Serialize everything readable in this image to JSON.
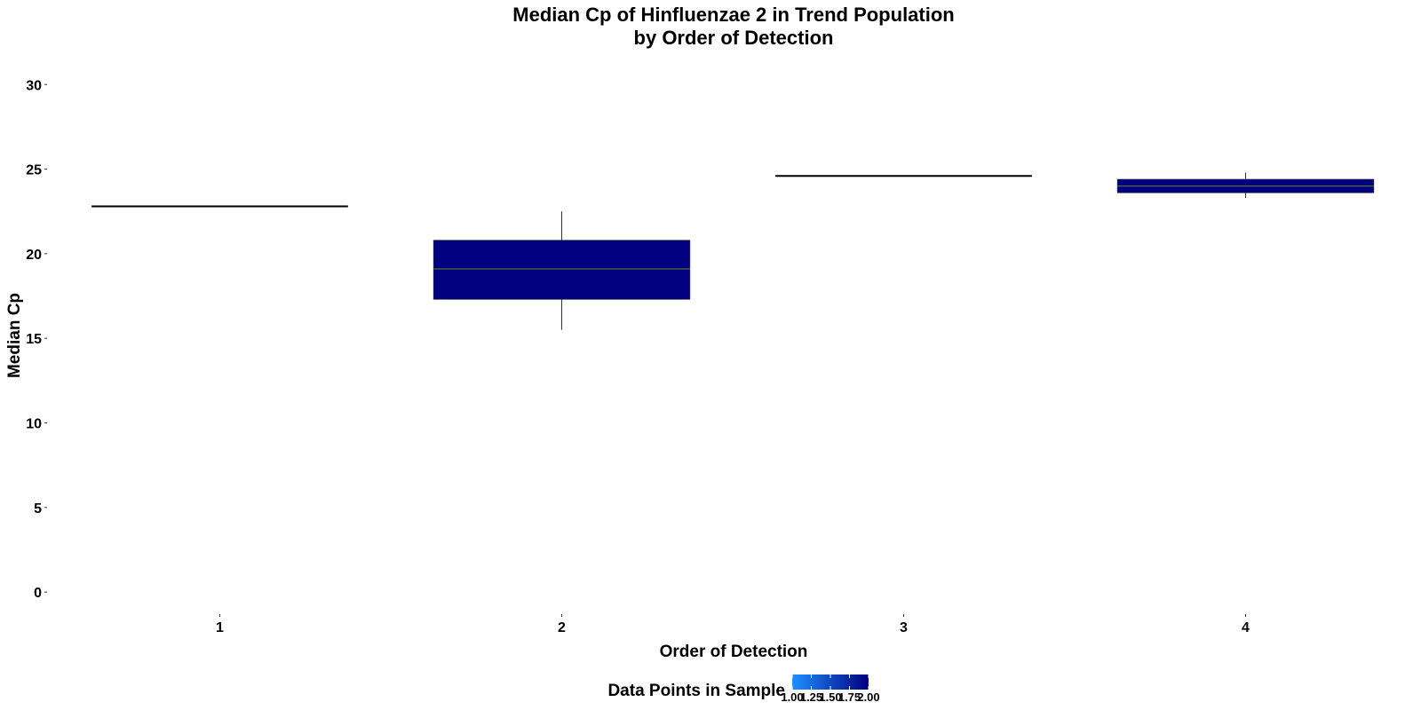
{
  "chart_data": {
    "type": "box",
    "title_lines": [
      "Median Cp of Hinfluenzae 2 in Trend Population",
      "by Order of Detection"
    ],
    "xlabel": "Order of Detection",
    "ylabel": "Median Cp",
    "categories": [
      "1",
      "2",
      "3",
      "4"
    ],
    "ylim": [
      -1.2,
      30.8
    ],
    "yticks": [
      0,
      5,
      10,
      15,
      20,
      25,
      30
    ],
    "boxes": [
      {
        "category": "1",
        "min": 22.8,
        "q1": 22.8,
        "median": 22.8,
        "q3": 22.8,
        "max": 22.8,
        "data_points": 1
      },
      {
        "category": "2",
        "min": 15.5,
        "q1": 17.3,
        "median": 19.1,
        "q3": 20.8,
        "max": 22.5,
        "data_points": 2
      },
      {
        "category": "3",
        "min": 24.6,
        "q1": 24.6,
        "median": 24.6,
        "q3": 24.6,
        "max": 24.6,
        "data_points": 1
      },
      {
        "category": "4",
        "min": 23.3,
        "q1": 23.6,
        "median": 24.0,
        "q3": 24.4,
        "max": 24.8,
        "data_points": 2
      }
    ],
    "grid": false,
    "legend": {
      "title": "Data Points in Sample",
      "placement": "bottom",
      "ticks": [
        "1.00",
        "1.25",
        "1.50",
        "1.75",
        "2.00"
      ],
      "range": [
        1,
        2
      ],
      "low_color": "#1E90FF",
      "high_color": "#000080"
    },
    "colors": {
      "box_fill": "#000080",
      "median_line": "#556B2F",
      "whisker": "#333333",
      "flat_line": "#000000"
    }
  }
}
